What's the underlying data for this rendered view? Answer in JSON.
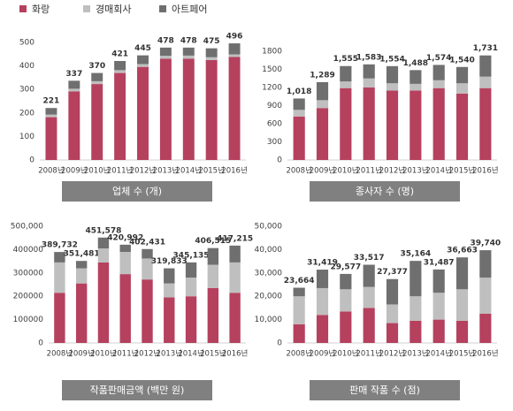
{
  "legend": [
    {
      "name": "화랑",
      "color": "#b5415e"
    },
    {
      "name": "경매회사",
      "color": "#bfbfbf"
    },
    {
      "name": "아트페어",
      "color": "#6f6f6f"
    }
  ],
  "chart_data": [
    {
      "type": "bar",
      "stacked": true,
      "xlabel": "업체 수 (개)",
      "categories": [
        "2008년",
        "2009년",
        "2010년",
        "2011년",
        "2012년",
        "2013년",
        "2014년",
        "2015년",
        "2016년"
      ],
      "series": [
        {
          "values": [
            182,
            292,
            323,
            370,
            396,
            431,
            431,
            425,
            438
          ]
        },
        {
          "values": [
            11,
            11,
            12,
            12,
            12,
            12,
            13,
            12,
            11
          ]
        },
        {
          "values": [
            28,
            34,
            35,
            39,
            37,
            35,
            34,
            38,
            47
          ]
        }
      ],
      "totals": [
        221,
        337,
        370,
        421,
        445,
        478,
        478,
        475,
        496
      ],
      "ylim": [
        0,
        500
      ],
      "yticks": [
        0,
        100,
        200,
        300,
        400,
        500
      ]
    },
    {
      "type": "bar",
      "stacked": true,
      "xlabel": "종사자 수 (명)",
      "categories": [
        "2008년",
        "2009년",
        "2010년",
        "2011년",
        "2012년",
        "2013년",
        "2014년",
        "2015년",
        "2016년"
      ],
      "series": [
        {
          "values": [
            720,
            860,
            1190,
            1200,
            1150,
            1150,
            1190,
            1100,
            1190
          ]
        },
        {
          "values": [
            110,
            130,
            110,
            150,
            120,
            110,
            130,
            170,
            190
          ]
        },
        {
          "values": [
            188,
            299,
            255,
            233,
            284,
            228,
            254,
            270,
            351
          ]
        }
      ],
      "totals": [
        1018,
        1289,
        1555,
        1583,
        1554,
        1488,
        1574,
        1540,
        1731
      ],
      "total_labels": [
        "1,018",
        "1,289",
        "1,555",
        "1,583",
        "1,554",
        "1,488",
        "1,574",
        "1,540",
        "1,731"
      ],
      "ylim": [
        0,
        1800
      ],
      "yticks": [
        0,
        300,
        600,
        900,
        1200,
        1500,
        1800
      ]
    },
    {
      "type": "bar",
      "stacked": true,
      "xlabel": "작품판매금액 (백만 원)",
      "categories": [
        "2008년",
        "2009년",
        "2010년",
        "2011년",
        "2012년",
        "2013년",
        "2014년",
        "2015년",
        "2016년"
      ],
      "series": [
        {
          "values": [
            215000,
            255000,
            345000,
            295000,
            272000,
            195000,
            200000,
            235000,
            215000
          ]
        },
        {
          "values": [
            130000,
            65000,
            60000,
            95000,
            90000,
            60000,
            80000,
            100000,
            130000
          ]
        },
        {
          "values": [
            44732,
            31481,
            46578,
            30992,
            40431,
            64833,
            65135,
            71515,
            72215
          ]
        }
      ],
      "totals": [
        389732,
        351481,
        451578,
        420992,
        402431,
        319833,
        345135,
        406515,
        417215
      ],
      "total_labels": [
        "389,732",
        "351,481",
        "451,578",
        "420,992",
        "402,431",
        "319,833",
        "345,135",
        "406,515",
        "417,215"
      ],
      "ylim": [
        0,
        500000
      ],
      "yticks": [
        0,
        100000,
        200000,
        300000,
        400000,
        {
          "value": 500000,
          "label": "500,000"
        }
      ]
    },
    {
      "type": "bar",
      "stacked": true,
      "xlabel": "판매 작품 수 (점)",
      "categories": [
        "2008년",
        "2009년",
        "2010년",
        "2011년",
        "2012년",
        "2013년",
        "2014년",
        "2015년",
        "2016년"
      ],
      "series": [
        {
          "values": [
            8000,
            12000,
            13500,
            15000,
            8500,
            9500,
            10000,
            9500,
            12500
          ]
        },
        {
          "values": [
            12000,
            11500,
            9500,
            9000,
            8000,
            10500,
            11500,
            13500,
            15500
          ]
        },
        {
          "values": [
            3664,
            7919,
            6577,
            9517,
            10877,
            15164,
            9987,
            13663,
            11740
          ]
        }
      ],
      "totals": [
        23664,
        31419,
        29577,
        33517,
        27377,
        35164,
        31487,
        36663,
        39740
      ],
      "total_labels": [
        "23,664",
        "31,419",
        "29,577",
        "33,517",
        "27,377",
        "35,164",
        "31,487",
        "36,663",
        "39,740"
      ],
      "ylim": [
        0,
        50000
      ],
      "yticks": [
        0,
        {
          "value": 10000,
          "label": "10,000"
        },
        {
          "value": 20000,
          "label": "20,000"
        },
        {
          "value": 30000,
          "label": "30,000"
        },
        {
          "value": 40000,
          "label": "40,000"
        },
        {
          "value": 50000,
          "label": "50,000"
        }
      ]
    }
  ]
}
